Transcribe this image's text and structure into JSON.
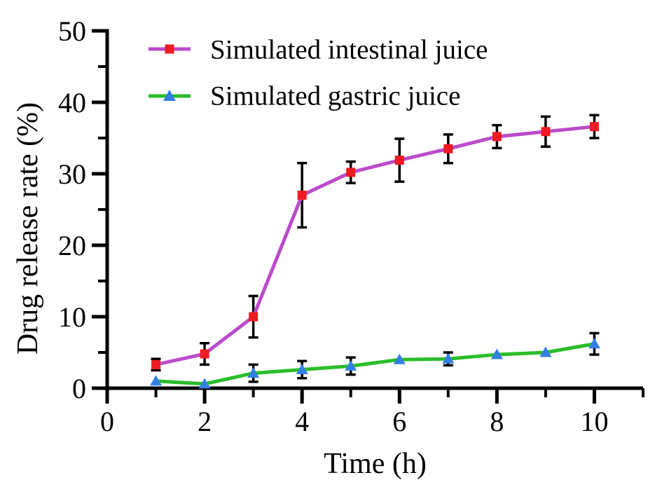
{
  "figure": {
    "background": "#ffffff"
  },
  "chart_data": {
    "type": "line",
    "title": "",
    "xlabel": "Time (h)",
    "ylabel": "Drug release rate (%)",
    "xlim": [
      0,
      11
    ],
    "ylim": [
      0,
      50
    ],
    "x_major_ticks": [
      0,
      2,
      4,
      6,
      8,
      10
    ],
    "x_minor_ticks": [
      1,
      3,
      5,
      7,
      9,
      11
    ],
    "y_major_ticks": [
      0,
      10,
      20,
      30,
      40,
      50
    ],
    "y_minor_ticks": [
      5,
      15,
      25,
      35,
      45
    ],
    "grid": false,
    "legend_position": "inside-top-left",
    "axis_color": "#000000",
    "error_bar_color": "#000000",
    "x": [
      1,
      2,
      3,
      4,
      5,
      6,
      7,
      8,
      9,
      10
    ],
    "series": [
      {
        "name": "Simulated intestinal juice",
        "marker": "square",
        "marker_color": "#ee1b23",
        "line_color": "#bb4bca",
        "values": [
          3.3,
          4.8,
          10.0,
          27.0,
          30.2,
          31.9,
          33.5,
          35.2,
          35.9,
          36.6
        ],
        "errors": [
          0.8,
          1.5,
          2.9,
          4.5,
          1.5,
          3.0,
          2.0,
          1.6,
          2.1,
          1.6
        ]
      },
      {
        "name": "Simulated gastric juice",
        "marker": "triangle",
        "marker_color": "#3380e3",
        "line_color": "#2abd2a",
        "values": [
          1.0,
          0.6,
          2.1,
          2.6,
          3.1,
          4.0,
          4.1,
          4.7,
          5.0,
          6.2
        ],
        "errors": [
          0,
          0,
          1.2,
          1.2,
          1.2,
          0,
          0.9,
          0,
          0,
          1.5
        ]
      }
    ]
  }
}
